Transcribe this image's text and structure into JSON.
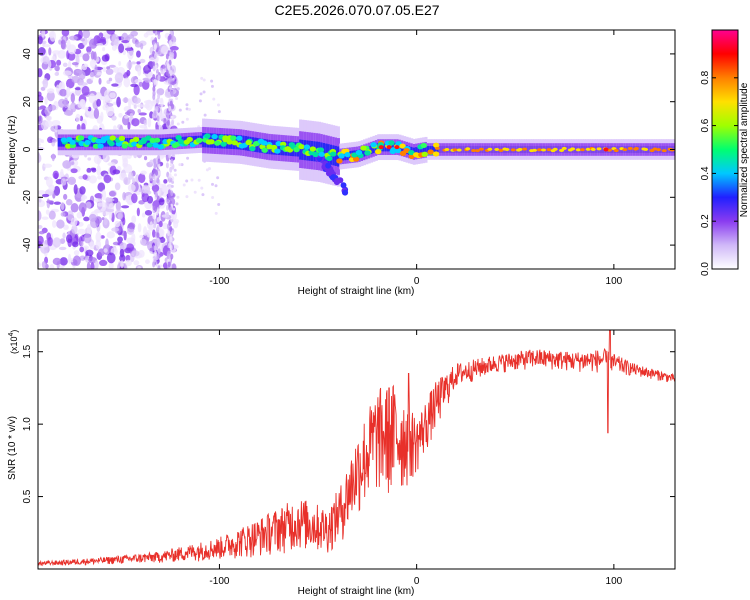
{
  "figure": {
    "title": "C2E5.2026.070.07.05.E27"
  },
  "chart_data": [
    {
      "type": "heatmap",
      "id": "spectrogram",
      "title": "C2E5.2026.070.07.05.E27",
      "xlabel": "Height of straight line (km)",
      "ylabel": "Frequency (Hz)",
      "xlim": [
        -192,
        131
      ],
      "ylim": [
        -50,
        50
      ],
      "xticks": [
        -100,
        0,
        100
      ],
      "yticks": [
        -40,
        -20,
        0,
        20,
        40
      ],
      "colorbar": {
        "label": "Normalized spectral amplitude",
        "range": [
          0,
          1
        ],
        "ticks": [
          "0.0",
          "0.2",
          "0.4",
          "0.6",
          "0.8"
        ],
        "colors": [
          "#ffffff",
          "#d0b8f8",
          "#8a3cf0",
          "#2020ff",
          "#00c8ff",
          "#00ff70",
          "#a0ff00",
          "#ffe000",
          "#ff8000",
          "#ff0000",
          "#ff0090"
        ]
      },
      "ridge": [
        {
          "x": -175,
          "f": 3
        },
        {
          "x": -150,
          "f": 3
        },
        {
          "x": -130,
          "f": 3
        },
        {
          "x": -110,
          "f": 4
        },
        {
          "x": -90,
          "f": 3
        },
        {
          "x": -75,
          "f": 1
        },
        {
          "x": -60,
          "f": 0
        },
        {
          "x": -50,
          "f": -1
        },
        {
          "x": -40,
          "f": -3
        },
        {
          "x": -30,
          "f": -2
        },
        {
          "x": -20,
          "f": 1
        },
        {
          "x": -10,
          "f": 1
        },
        {
          "x": -2,
          "f": -1
        },
        {
          "x": 5,
          "f": 0
        },
        {
          "x": 20,
          "f": 0
        },
        {
          "x": 60,
          "f": 0
        },
        {
          "x": 96,
          "f": 0
        },
        {
          "x": 131,
          "f": 0
        }
      ]
    },
    {
      "type": "line",
      "id": "snr",
      "xlabel": "Height of straight line (km)",
      "ylabel": "SNR (10 * v/v)",
      "scale_label": "(x10",
      "scale_exp": "4",
      "scale_close": ")",
      "xlim": [
        -192,
        131
      ],
      "ylim": [
        0,
        1.65
      ],
      "xticks": [
        -100,
        0,
        100
      ],
      "yticks": [
        0.5,
        1.0,
        1.5
      ],
      "ytick_labels": [
        "0.5",
        "1.0",
        "1.5"
      ],
      "color": "#e8302a",
      "envelope": [
        {
          "x": -192,
          "lo": 0.02,
          "hi": 0.05
        },
        {
          "x": -160,
          "lo": 0.03,
          "hi": 0.08
        },
        {
          "x": -130,
          "lo": 0.04,
          "hi": 0.12
        },
        {
          "x": -100,
          "lo": 0.06,
          "hi": 0.22
        },
        {
          "x": -80,
          "lo": 0.08,
          "hi": 0.35
        },
        {
          "x": -60,
          "lo": 0.12,
          "hi": 0.5
        },
        {
          "x": -45,
          "lo": 0.1,
          "hi": 0.42
        },
        {
          "x": -38,
          "lo": 0.18,
          "hi": 0.6
        },
        {
          "x": -30,
          "lo": 0.35,
          "hi": 0.95
        },
        {
          "x": -20,
          "lo": 0.5,
          "hi": 1.25
        },
        {
          "x": -10,
          "lo": 0.45,
          "hi": 1.3
        },
        {
          "x": 0,
          "lo": 0.65,
          "hi": 1.05
        },
        {
          "x": 10,
          "lo": 0.95,
          "hi": 1.3
        },
        {
          "x": 20,
          "lo": 1.25,
          "hi": 1.42
        },
        {
          "x": 40,
          "lo": 1.35,
          "hi": 1.48
        },
        {
          "x": 60,
          "lo": 1.38,
          "hi": 1.52
        },
        {
          "x": 80,
          "lo": 1.36,
          "hi": 1.5
        },
        {
          "x": 95,
          "lo": 1.35,
          "hi": 1.52
        },
        {
          "x": 110,
          "lo": 1.33,
          "hi": 1.42
        },
        {
          "x": 131,
          "lo": 1.28,
          "hi": 1.34
        }
      ],
      "spikes": [
        {
          "x": 98,
          "y": 1.66
        },
        {
          "x": 97,
          "y": 0.94
        },
        {
          "x": -14,
          "y": 1.25
        },
        {
          "x": -4,
          "y": 1.35
        }
      ]
    }
  ]
}
